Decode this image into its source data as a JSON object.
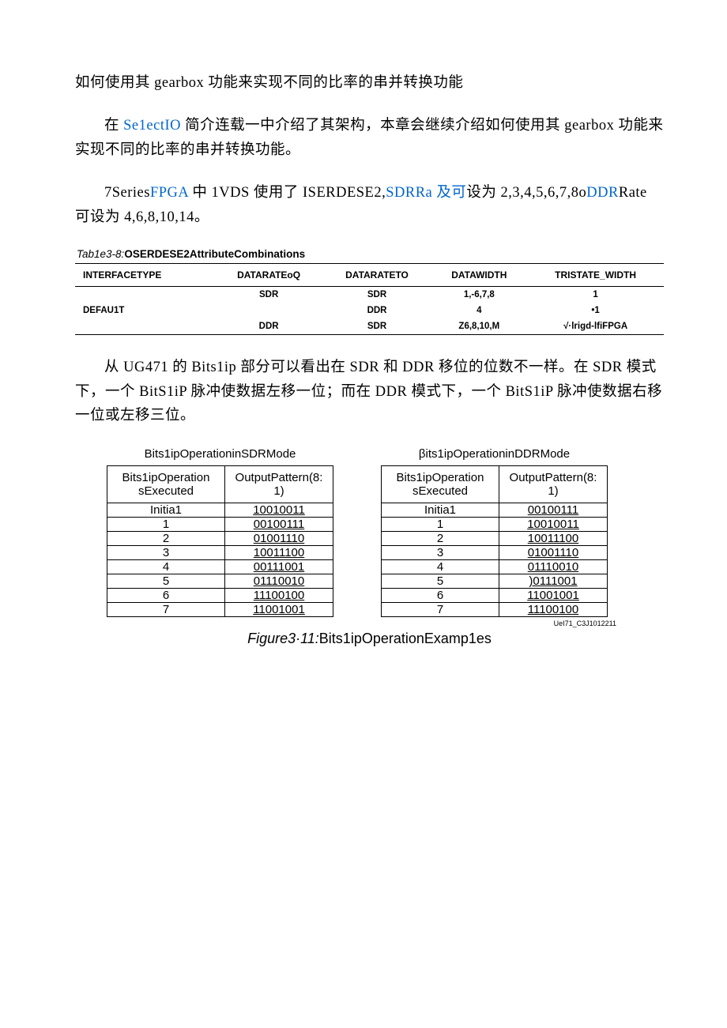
{
  "title": "如何使用其 gearbox 功能来实现不同的比率的串并转换功能",
  "p1_pre": "在 ",
  "p1_link": "Se1ectIO",
  "p1_mid": " 简介连载一中介绍了其架构，本章会继续介绍如何使用其 gearbox 功能来实现不同的比率的串并转换功能。",
  "p2_a": "7Series",
  "p2_link1": "FPGA ",
  "p2_b": "中 1VDS 使用了 ISERDESE2,",
  "p2_link2": "SDRRa 及可",
  "p2_c": "设为 2,3,4,5,6,7,8o",
  "p2_link3": "DDR",
  "p2_d": "Rate 可设为 4,6,8,10,14。",
  "tbl_caption_label": "Tab1e3-8:",
  "tbl_caption_name": "OSERDESE2AttributeCombinations",
  "tbl_headers": [
    "INTERFACETYPE",
    "DATARATEoQ",
    "DATARATETO",
    "DATAWIDTH",
    "TRISTATE_WIDTH"
  ],
  "tbl_rows": [
    [
      "",
      "SDR",
      "SDR",
      "1,-6,7,8",
      "1"
    ],
    [
      "DEFAU1T",
      "",
      "DDR",
      "4",
      "•1"
    ],
    [
      "",
      "DDR",
      "SDR",
      "Z6,8,10,M",
      "√·lrigd-lfiFPGA"
    ]
  ],
  "p3": "从 UG471 的 Bits1ip 部分可以看出在 SDR 和 DDR 移位的位数不一样。在 SDR 模式下，一个 BitS1iP 脉冲使数据左移一位；而在 DDR 模式下，一个 BitS1iP 脉冲使数据右移一位或左移三位。",
  "sdr_title": "Bits1ipOperationinSDRMode",
  "ddr_title": "βits1ipOperationinDDRMode",
  "op_h1": "Bits1ipOperationsExecuted",
  "op_h2": "OutputPattern(8:1)",
  "sdr_rows": [
    [
      "Initia1",
      "10010011"
    ],
    [
      "1",
      "00100111"
    ],
    [
      "2",
      "01001110"
    ],
    [
      "3",
      "10011100"
    ],
    [
      "4",
      "00111001"
    ],
    [
      "5",
      "01110010"
    ],
    [
      "6",
      "11100100"
    ],
    [
      "7",
      "11001001"
    ]
  ],
  "ddr_rows": [
    [
      "Initia1",
      "00100111"
    ],
    [
      "1",
      "10010011"
    ],
    [
      "2",
      "10011100"
    ],
    [
      "3",
      "01001110"
    ],
    [
      "4",
      "01110010"
    ],
    [
      "5",
      ")0111001"
    ],
    [
      "6",
      "11001001"
    ],
    [
      "7",
      "11100100"
    ]
  ],
  "fig_ref": "UeI71_C3J1012211",
  "fig_caption_label": "Figure3·11:",
  "fig_caption_text": "Bits1ipOperationExamp1es"
}
